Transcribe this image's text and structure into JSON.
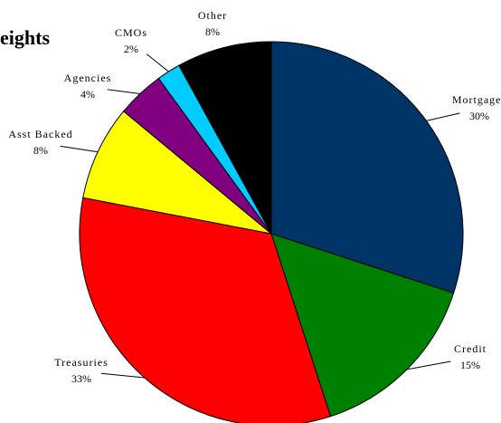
{
  "chart_data": {
    "type": "pie",
    "title": "eights",
    "categories": [
      "Mortgages",
      "Credit",
      "Treasuries",
      "Asst Backed",
      "Agencies",
      "CMOs",
      "Other"
    ],
    "values": [
      30,
      15,
      33,
      8,
      4,
      2,
      8
    ],
    "value_labels": [
      "30%",
      "15%",
      "33%",
      "8%",
      "4%",
      "2%",
      "8%"
    ],
    "colors": [
      "#003366",
      "#008000",
      "#ff0000",
      "#ffff00",
      "#800080",
      "#00ccff",
      "#000000"
    ]
  }
}
